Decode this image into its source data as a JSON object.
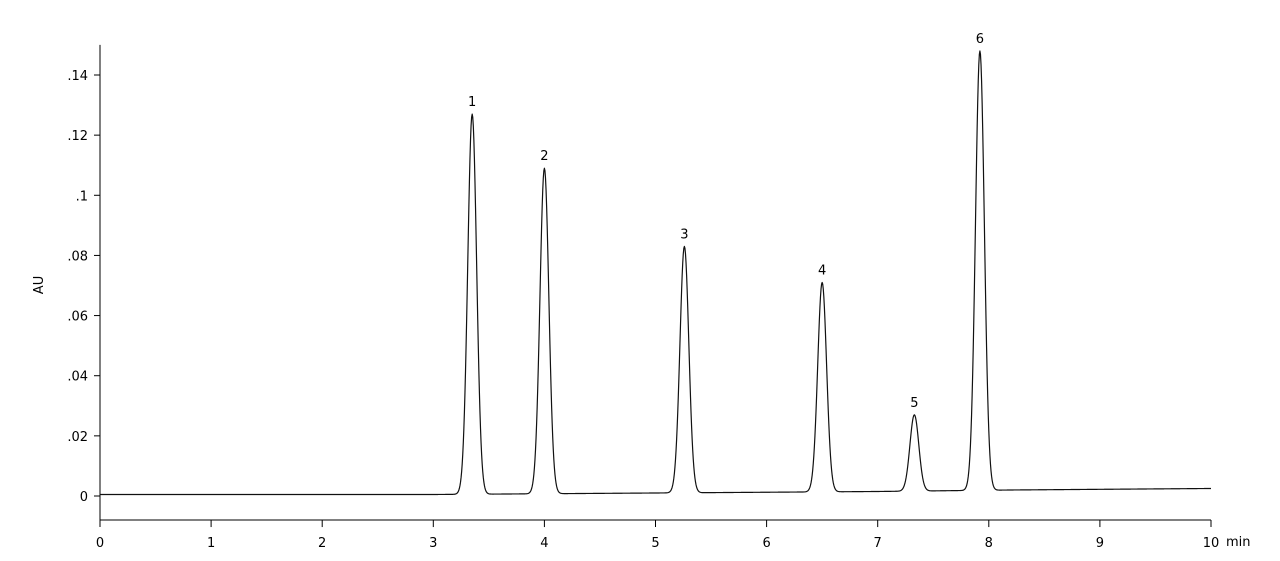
{
  "chart_data": {
    "type": "line",
    "title": "",
    "xlabel": "",
    "x_unit": "min",
    "ylabel": "AU",
    "xlim": [
      0,
      10
    ],
    "ylim": [
      -0.008,
      0.15
    ],
    "grid": false,
    "x_ticks": [
      0,
      1,
      2,
      3,
      4,
      5,
      6,
      7,
      8,
      9,
      10
    ],
    "x_tick_labels": [
      "0",
      "1",
      "2",
      "3",
      "4",
      "5",
      "6",
      "7",
      "8",
      "9",
      "10"
    ],
    "y_ticks": [
      0,
      0.02,
      0.04,
      0.06,
      0.08,
      0.1,
      0.12,
      0.14
    ],
    "y_tick_labels": [
      "0",
      ".02",
      ".04",
      ".06",
      ".08",
      ".1",
      ".12",
      ".14"
    ],
    "baseline": [
      {
        "x": 0,
        "y": 0.0005
      },
      {
        "x": 3.0,
        "y": 0.0005
      },
      {
        "x": 5.0,
        "y": 0.001
      },
      {
        "x": 7.0,
        "y": 0.0015
      },
      {
        "x": 8.2,
        "y": 0.002
      },
      {
        "x": 10.0,
        "y": 0.0025
      }
    ],
    "peaks": [
      {
        "label": "1",
        "retention_time": 3.35,
        "height": 0.127
      },
      {
        "label": "2",
        "retention_time": 4.0,
        "height": 0.109
      },
      {
        "label": "3",
        "retention_time": 5.26,
        "height": 0.083
      },
      {
        "label": "4",
        "retention_time": 6.5,
        "height": 0.071
      },
      {
        "label": "5",
        "retention_time": 7.33,
        "height": 0.027
      },
      {
        "label": "6",
        "retention_time": 7.92,
        "height": 0.148
      }
    ]
  }
}
